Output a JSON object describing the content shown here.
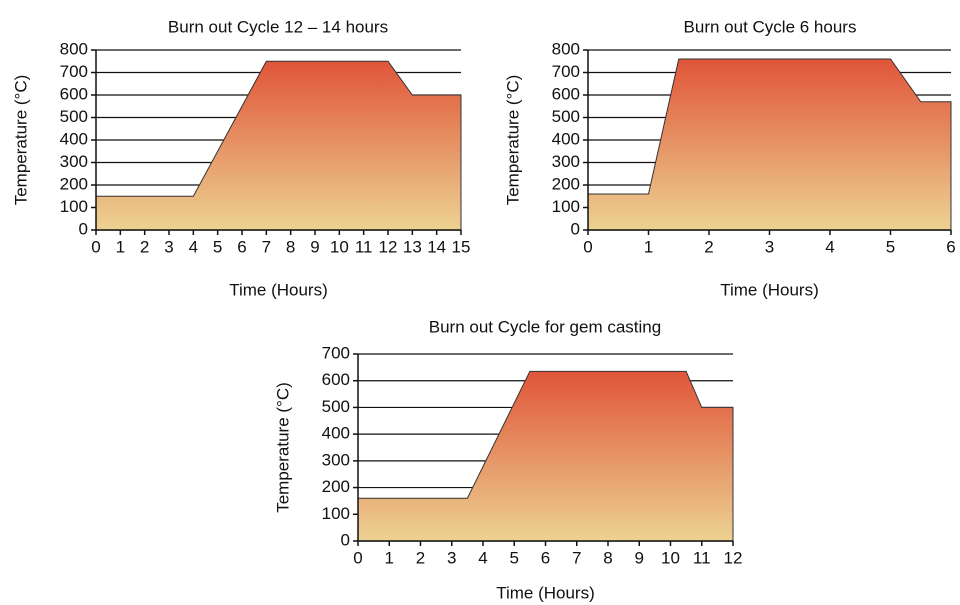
{
  "chart_data": [
    {
      "type": "area",
      "title": "Burn out Cycle 12 – 14 hours",
      "x_label": "Time (Hours)",
      "y_label": "Temperature (°C)",
      "x": [
        0,
        4,
        7,
        12,
        13,
        15
      ],
      "values": [
        150,
        150,
        750,
        750,
        600,
        600
      ],
      "xlim": [
        0,
        15
      ],
      "xticks": [
        0,
        1,
        2,
        3,
        4,
        5,
        6,
        7,
        8,
        9,
        10,
        11,
        12,
        13,
        14,
        15
      ],
      "ylim": [
        0,
        800
      ],
      "yticks": [
        0,
        100,
        200,
        300,
        400,
        500,
        600,
        700,
        800
      ],
      "grid": true,
      "color_top": "#e0553a",
      "color_bottom": "#ecd292"
    },
    {
      "type": "area",
      "title": "Burn out Cycle 6 hours",
      "x_label": "Time (Hours)",
      "y_label": "Temperature (°C)",
      "x": [
        0,
        1,
        1.5,
        5,
        5.5,
        6
      ],
      "values": [
        160,
        160,
        760,
        760,
        570,
        570
      ],
      "xlim": [
        0,
        6
      ],
      "xticks": [
        0,
        1,
        2,
        3,
        4,
        5,
        6
      ],
      "ylim": [
        0,
        800
      ],
      "yticks": [
        0,
        100,
        200,
        300,
        400,
        500,
        600,
        700,
        800
      ],
      "grid": true,
      "color_top": "#e0553a",
      "color_bottom": "#ecd292"
    },
    {
      "type": "area",
      "title": "Burn out Cycle for gem casting",
      "x_label": "Time (Hours)",
      "y_label": "Temperature (°C)",
      "x": [
        0,
        3.5,
        5.5,
        10.5,
        11,
        12
      ],
      "values": [
        160,
        160,
        635,
        635,
        500,
        500
      ],
      "xlim": [
        0,
        12
      ],
      "xticks": [
        0,
        1,
        2,
        3,
        4,
        5,
        6,
        7,
        8,
        9,
        10,
        11,
        12
      ],
      "ylim": [
        0,
        700
      ],
      "yticks": [
        0,
        100,
        200,
        300,
        400,
        500,
        600,
        700
      ],
      "grid": true,
      "color_top": "#e0553a",
      "color_bottom": "#ecd292"
    }
  ]
}
